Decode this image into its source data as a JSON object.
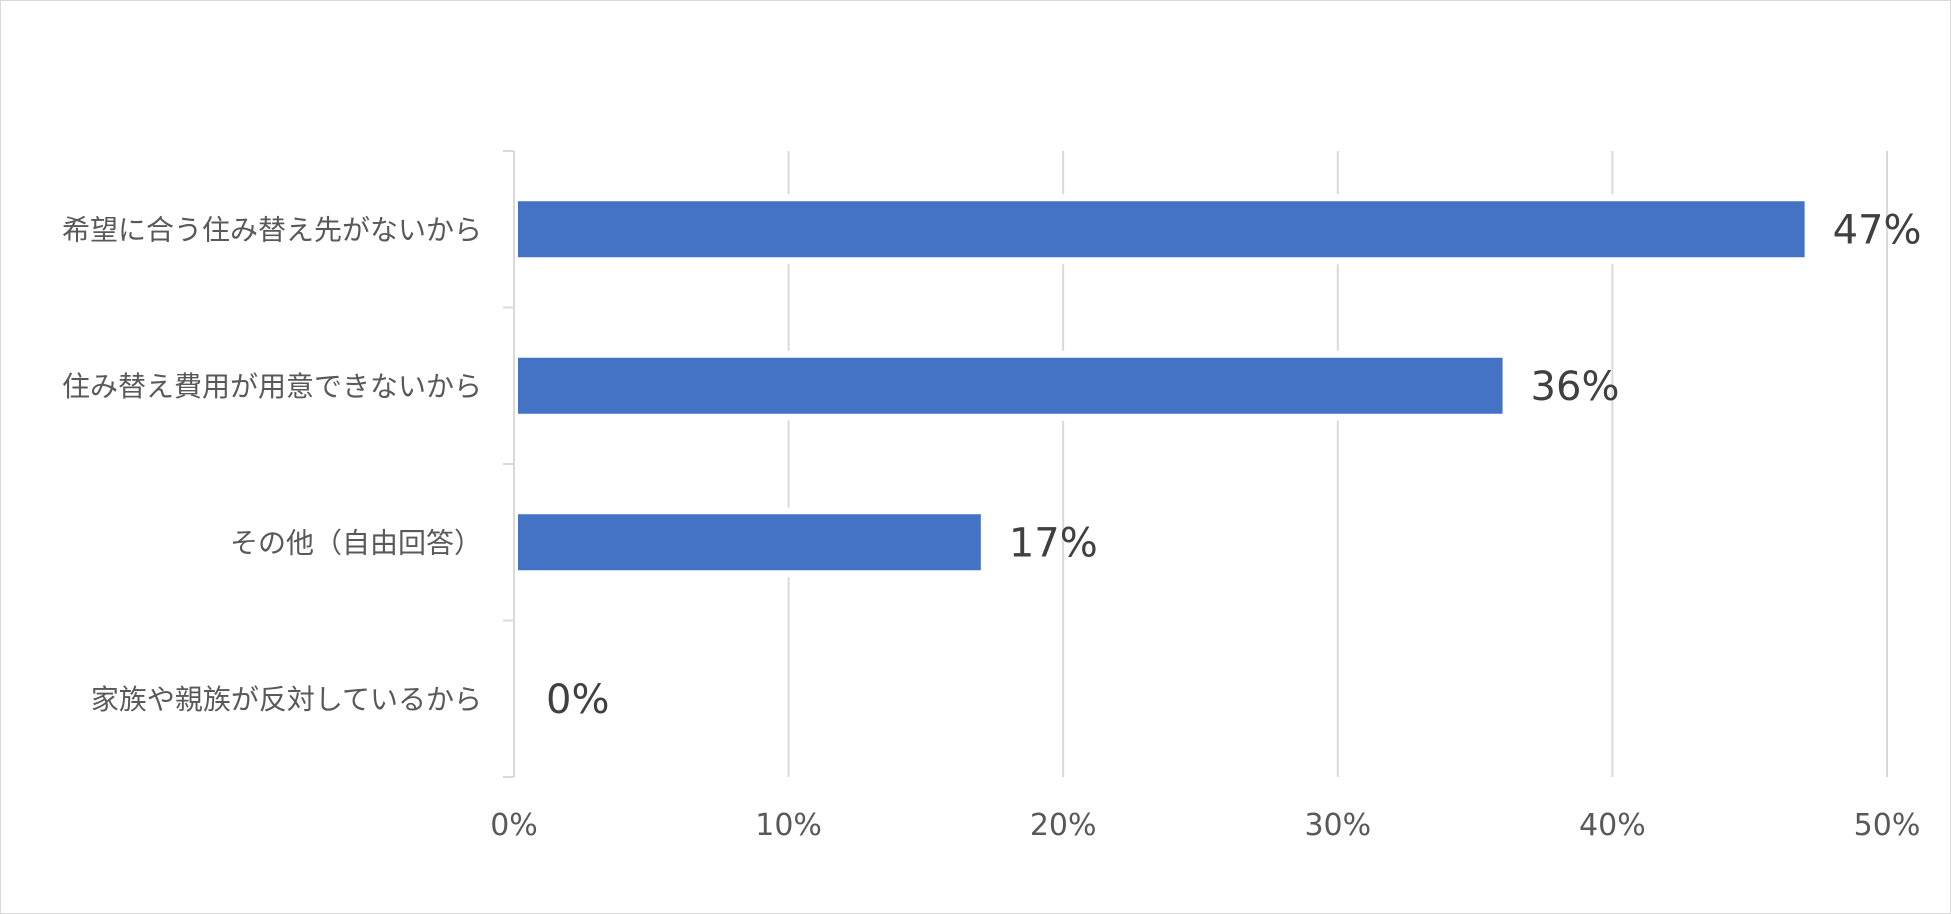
{
  "chart_data": {
    "type": "bar",
    "orientation": "horizontal",
    "categories": [
      "希望に合う住み替え先がないから",
      "住み替え費用が用意できないから",
      "その他（自由回答）",
      "家族や親族が反対しているから"
    ],
    "values": [
      47,
      36,
      17,
      0
    ],
    "data_labels": [
      "47%",
      "36%",
      "17%",
      "0%"
    ],
    "x_ticks": [
      "0%",
      "10%",
      "20%",
      "30%",
      "40%",
      "50%"
    ],
    "xlim": [
      0,
      50
    ],
    "grid": true,
    "bar_color": "#4472C4",
    "gridline_color": "#D9D9D9"
  }
}
